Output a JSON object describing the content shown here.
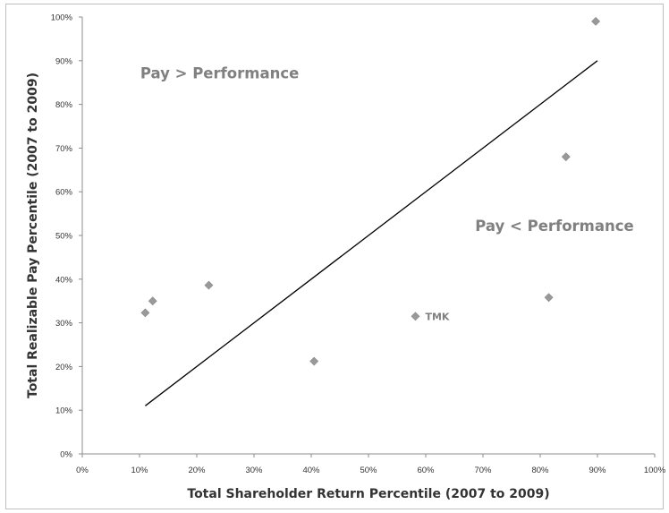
{
  "chart_data": {
    "type": "scatter",
    "title": "",
    "xlabel": "Total Shareholder Return Percentile (2007 to 2009)",
    "ylabel": "Total Realizable Pay Percentile (2007 to 2009)",
    "xlim": [
      0,
      100
    ],
    "ylim": [
      0,
      100
    ],
    "x_ticks": [
      "0%",
      "10%",
      "20%",
      "30%",
      "40%",
      "50%",
      "60%",
      "70%",
      "80%",
      "90%",
      "100%"
    ],
    "y_ticks": [
      "0%",
      "10%",
      "20%",
      "30%",
      "40%",
      "50%",
      "60%",
      "70%",
      "80%",
      "90%",
      "100%"
    ],
    "grid": false,
    "points": [
      {
        "x": 11,
        "y": 32.3,
        "label": ""
      },
      {
        "x": 12.3,
        "y": 35,
        "label": ""
      },
      {
        "x": 22.1,
        "y": 38.6,
        "label": ""
      },
      {
        "x": 40.5,
        "y": 21.2,
        "label": ""
      },
      {
        "x": 58.2,
        "y": 31.5,
        "label": "TMK"
      },
      {
        "x": 81.5,
        "y": 35.8,
        "label": ""
      },
      {
        "x": 84.5,
        "y": 68,
        "label": ""
      },
      {
        "x": 89.7,
        "y": 99,
        "label": ""
      }
    ],
    "reference_line": {
      "x": [
        11,
        90
      ],
      "y": [
        11,
        90
      ]
    },
    "annotations": [
      {
        "text": "Pay > Performance",
        "x": 24,
        "y": 86
      },
      {
        "text": "Pay < Performance",
        "x": 82.5,
        "y": 51
      }
    ],
    "marker_color": "#999999",
    "line_color": "#000000",
    "annotation_color": "#808080"
  }
}
